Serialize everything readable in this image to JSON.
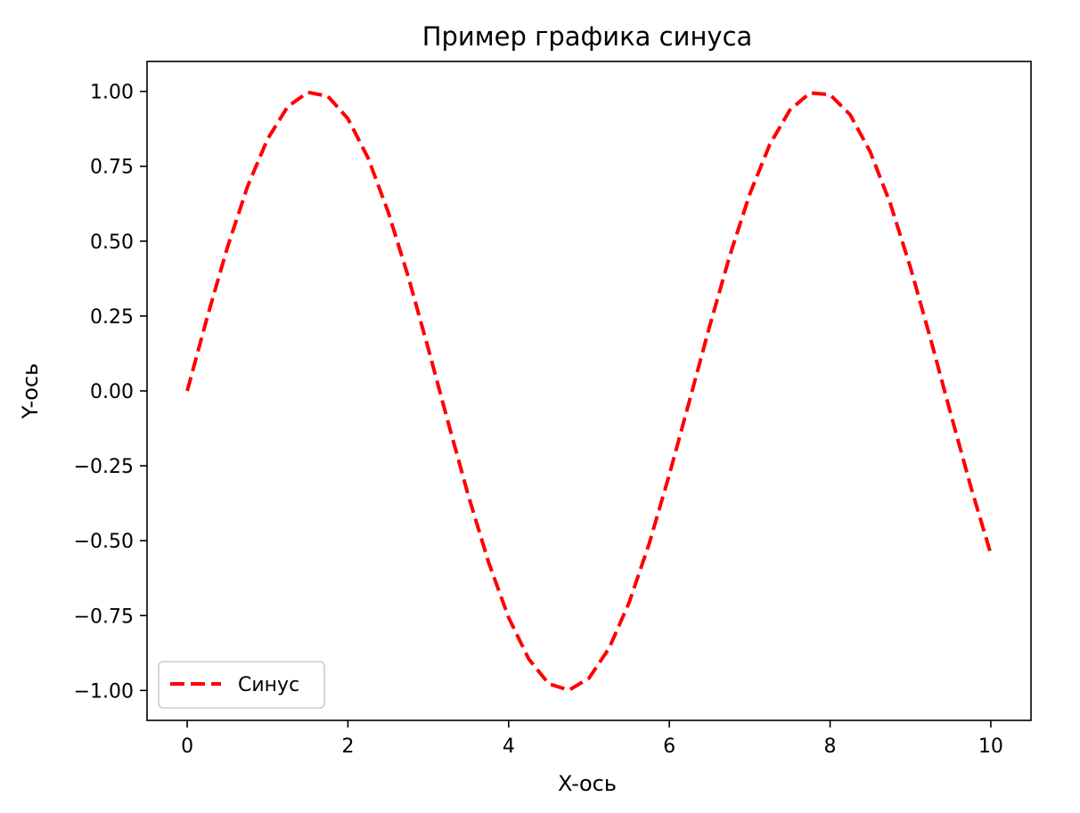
{
  "chart_data": {
    "type": "line",
    "title": "Пример графика синуса",
    "xlabel": "X-ось",
    "ylabel": "Y-ось",
    "xlim": [
      -0.5,
      10.5
    ],
    "ylim": [
      -1.1,
      1.1
    ],
    "grid": false,
    "legend_position": "lower-left",
    "xticks": [
      0,
      2,
      4,
      6,
      8,
      10
    ],
    "xtick_labels": [
      "0",
      "2",
      "4",
      "6",
      "8",
      "10"
    ],
    "yticks": [
      1.0,
      0.75,
      0.5,
      0.25,
      0.0,
      -0.25,
      -0.5,
      -0.75,
      -1.0
    ],
    "ytick_labels": [
      "1.00",
      "0.75",
      "0.50",
      "0.25",
      "0.00",
      "−0.25",
      "−0.50",
      "−0.75",
      "−1.00"
    ],
    "series": [
      {
        "name": "Синус",
        "color": "#ff0000",
        "line_style": "dashed",
        "x": [
          0,
          0.25,
          0.5,
          0.75,
          1,
          1.25,
          1.5,
          1.75,
          2,
          2.25,
          2.5,
          2.75,
          3,
          3.25,
          3.5,
          3.75,
          4,
          4.25,
          4.5,
          4.75,
          5,
          5.25,
          5.5,
          5.75,
          6,
          6.25,
          6.5,
          6.75,
          7,
          7.25,
          7.5,
          7.75,
          8,
          8.25,
          8.5,
          8.75,
          9,
          9.25,
          9.5,
          9.75,
          10
        ],
        "y": [
          0.0,
          0.247,
          0.479,
          0.682,
          0.841,
          0.949,
          0.997,
          0.984,
          0.909,
          0.778,
          0.598,
          0.382,
          0.141,
          -0.108,
          -0.351,
          -0.572,
          -0.757,
          -0.895,
          -0.978,
          -0.999,
          -0.959,
          -0.859,
          -0.706,
          -0.509,
          -0.279,
          -0.033,
          0.215,
          0.45,
          0.657,
          0.823,
          0.938,
          0.995,
          0.989,
          0.922,
          0.798,
          0.625,
          0.412,
          0.174,
          -0.075,
          -0.319,
          -0.544
        ]
      }
    ]
  }
}
